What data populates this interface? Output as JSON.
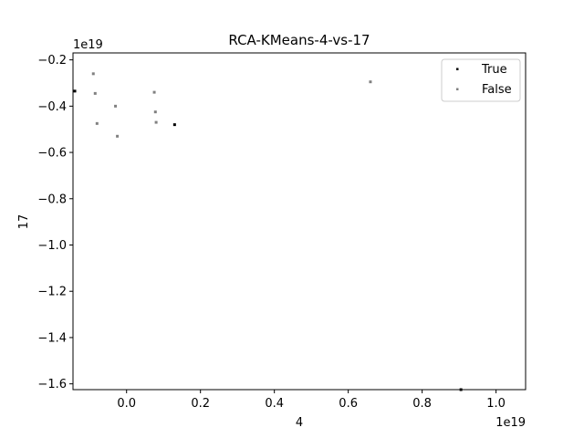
{
  "chart_data": {
    "type": "scatter",
    "title": "RCA-KMeans-4-vs-17",
    "xlabel": "4",
    "ylabel": "17",
    "x_offset_label": "1e19",
    "y_offset_label": "1e19",
    "xlim": [
      -0.145,
      1.08
    ],
    "ylim": [
      -1.625,
      -0.17
    ],
    "xticks": [
      0.0,
      0.2,
      0.4,
      0.6,
      0.8,
      1.0
    ],
    "xtick_labels": [
      "0.0",
      "0.2",
      "0.4",
      "0.6",
      "0.8",
      "1.0"
    ],
    "yticks": [
      -0.2,
      -0.4,
      -0.6,
      -0.8,
      -1.0,
      -1.2,
      -1.4,
      -1.6
    ],
    "ytick_labels": [
      "−0.2",
      "−0.4",
      "−0.6",
      "−0.8",
      "−1.0",
      "−1.2",
      "−1.4",
      "−1.6"
    ],
    "grid": false,
    "legend_position": "top-right",
    "series": [
      {
        "name": "True",
        "color": "#000000",
        "points": [
          [
            -0.14,
            -0.335
          ],
          [
            0.13,
            -0.48
          ],
          [
            0.905,
            -1.625
          ]
        ]
      },
      {
        "name": "False",
        "color": "#808080",
        "points": [
          [
            -0.09,
            -0.26
          ],
          [
            -0.085,
            -0.345
          ],
          [
            -0.08,
            -0.475
          ],
          [
            -0.03,
            -0.4
          ],
          [
            -0.025,
            -0.53
          ],
          [
            0.075,
            -0.34
          ],
          [
            0.078,
            -0.425
          ],
          [
            0.08,
            -0.47
          ],
          [
            0.66,
            -0.295
          ]
        ]
      }
    ]
  }
}
